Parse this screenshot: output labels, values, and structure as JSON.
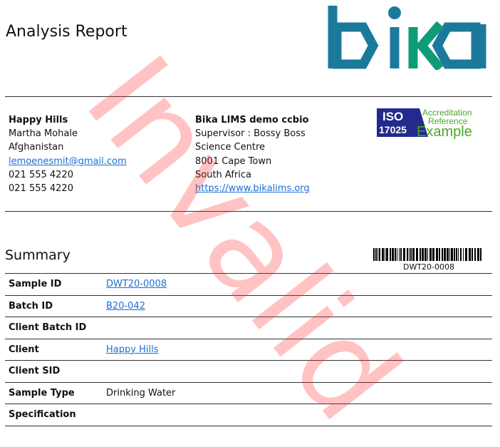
{
  "header": {
    "title": "Analysis Report",
    "logo_text": "bika",
    "logo_colors": {
      "blue": "#1b7a9c",
      "green": "#0e9c78"
    }
  },
  "client": {
    "name": "Happy Hills",
    "contact": "Martha Mohale",
    "country": "Afghanistan",
    "email": "lemoenesmit@gmail.com",
    "phone": "021 555 4220",
    "fax": "021 555 4220"
  },
  "lab": {
    "name": "Bika LIMS demo ccbio",
    "supervisor": "Supervisor : Bossy Boss",
    "address1": "Science Centre",
    "address2": "8001 Cape Town",
    "country": "South Africa",
    "url": "https://www.bikalims.org"
  },
  "accreditation": {
    "iso": "ISO",
    "number": "17025",
    "line1": "Accreditation",
    "line2": "Reference",
    "line3": "Example"
  },
  "summary": {
    "title": "Summary",
    "barcode": "DWT20-0008",
    "rows": [
      {
        "label": "Sample ID",
        "value": "DWT20-0008",
        "link": true
      },
      {
        "label": "Batch ID",
        "value": "B20-042",
        "link": true
      },
      {
        "label": "Client Batch ID",
        "value": ""
      },
      {
        "label": "Client",
        "value": "Happy Hills",
        "link": true
      },
      {
        "label": "Client SID",
        "value": ""
      },
      {
        "label": "Sample Type",
        "value": "Drinking Water"
      },
      {
        "label": "Specification",
        "value": ""
      }
    ]
  },
  "watermark": "Invalid"
}
